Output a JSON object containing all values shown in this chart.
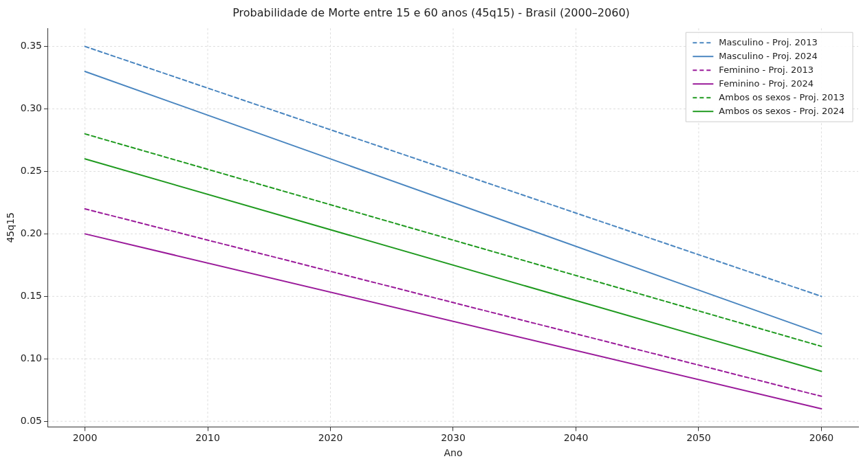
{
  "chart_data": {
    "type": "line",
    "title": "Probabilidade de Morte entre 15 e 60 anos (45q15) - Brasil (2000–2060)",
    "xlabel": "Ano",
    "ylabel": "45q15",
    "x": [
      2000,
      2060
    ],
    "series": [
      {
        "name": "Masculino - Proj. 2013",
        "color": "#4a86c0",
        "values": [
          0.35,
          0.15
        ],
        "line_style": "dashed"
      },
      {
        "name": "Masculino - Proj. 2024",
        "color": "#4a86c0",
        "values": [
          0.33,
          0.12
        ],
        "line_style": "solid"
      },
      {
        "name": "Feminino - Proj. 2013",
        "color": "#9a1a9a",
        "values": [
          0.22,
          0.07
        ],
        "line_style": "dashed"
      },
      {
        "name": "Feminino - Proj. 2024",
        "color": "#9a1a9a",
        "values": [
          0.2,
          0.06
        ],
        "line_style": "solid"
      },
      {
        "name": "Ambos os sexos - Proj. 2013",
        "color": "#1f9a1f",
        "values": [
          0.28,
          0.11
        ],
        "line_style": "dashed"
      },
      {
        "name": "Ambos os sexos - Proj. 2024",
        "color": "#1f9a1f",
        "values": [
          0.26,
          0.09
        ],
        "line_style": "solid"
      }
    ],
    "xlim": [
      1997,
      2063
    ],
    "xticks": [
      2000,
      2010,
      2020,
      2030,
      2040,
      2050,
      2060
    ],
    "ylim": [
      0.0455,
      0.3645
    ],
    "yticks": [
      0.05,
      {
        "value": 0.1,
        "label": "0.10"
      },
      0.15,
      {
        "value": 0.2,
        "label": "0.20"
      },
      0.25,
      {
        "value": 0.3,
        "label": "0.30"
      },
      0.35
    ],
    "grid": true,
    "legend": "top right",
    "marker": "none"
  }
}
